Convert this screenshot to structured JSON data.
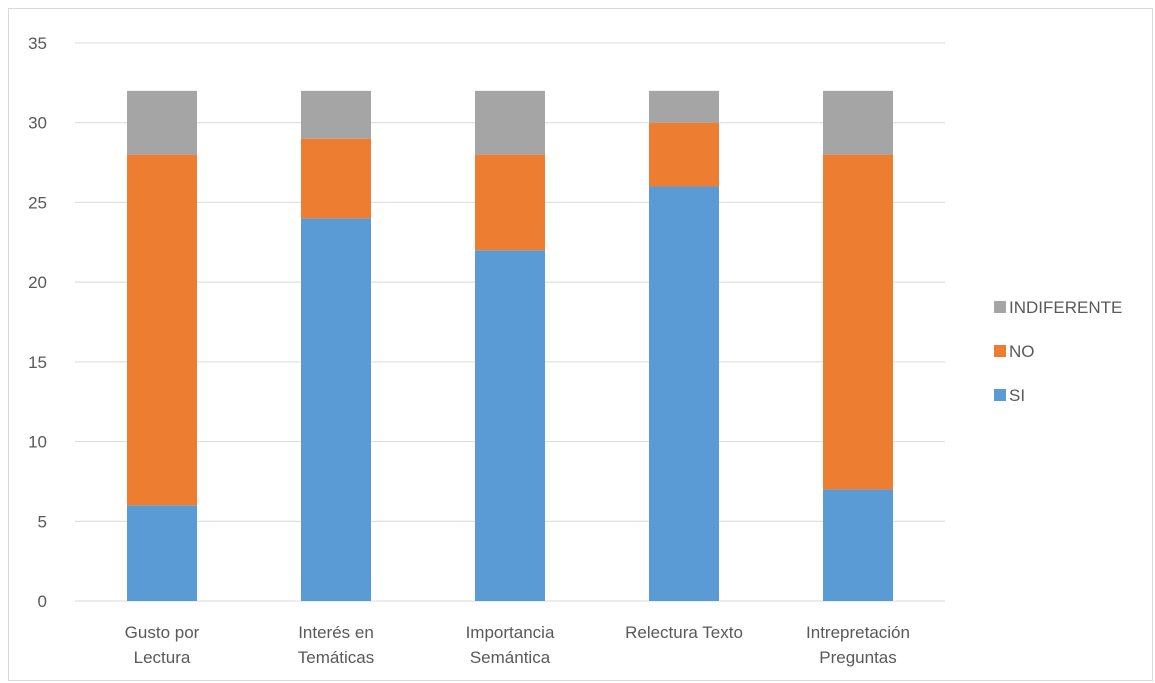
{
  "chart_data": {
    "type": "bar",
    "stacked": true,
    "categories": [
      [
        "Gusto por",
        "Lectura"
      ],
      [
        "Interés en",
        "Temáticas"
      ],
      [
        "Importancia",
        "Semántica"
      ],
      [
        "Relectura Texto"
      ],
      [
        "Intrepretación",
        "Preguntas"
      ]
    ],
    "series": [
      {
        "name": "SI",
        "color": "#5b9bd5",
        "values": [
          6,
          24,
          22,
          26,
          7
        ]
      },
      {
        "name": "NO",
        "color": "#ed7d31",
        "values": [
          22,
          5,
          6,
          4,
          21
        ]
      },
      {
        "name": "INDIFERENTE",
        "color": "#a5a5a5",
        "values": [
          4,
          3,
          4,
          2,
          4
        ]
      }
    ],
    "ylim": [
      0,
      35
    ],
    "yticks": [
      0,
      5,
      10,
      15,
      20,
      25,
      30,
      35
    ],
    "grid": true,
    "legend": "right",
    "legend_order": [
      "INDIFERENTE",
      "NO",
      "SI"
    ]
  }
}
